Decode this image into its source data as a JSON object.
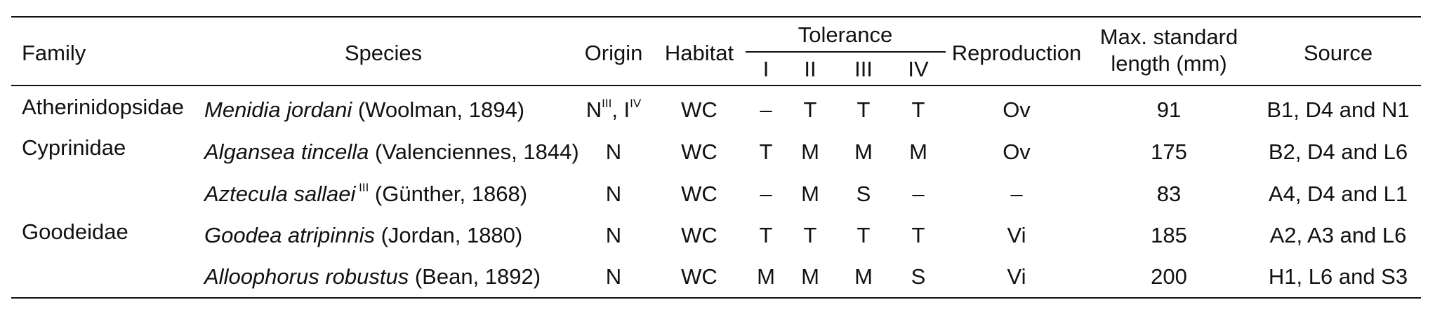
{
  "headers": {
    "family": "Family",
    "species": "Species",
    "origin": "Origin",
    "habitat": "Habitat",
    "tolerance": "Tolerance",
    "tolerance_sub": [
      "I",
      "II",
      "III",
      "IV"
    ],
    "reproduction": "Reproduction",
    "maxlen_line1": "Max. standard",
    "maxlen_line2": "length (mm)",
    "source": "Source"
  },
  "rows": [
    {
      "family": "Atherinidopsidae",
      "sci": "Menidia jordani",
      "sup": "",
      "authority": " (Woolman, 1894)",
      "origin_a": "N",
      "origin_a_sup": "III",
      "origin_sep": ", I",
      "origin_b_sup": "IV",
      "habitat": "WC",
      "tol": [
        "–",
        "T",
        "T",
        "T"
      ],
      "reproduction": "Ov",
      "maxlen": "91",
      "source": "B1, D4 and N1"
    },
    {
      "family": "Cyprinidae",
      "sci": "Algansea tincella",
      "sup": "",
      "authority": " (Valenciennes, 1844)",
      "origin": "N",
      "habitat": "WC",
      "tol": [
        "T",
        "M",
        "M",
        "M"
      ],
      "reproduction": "Ov",
      "maxlen": "175",
      "source": "B2, D4 and L6"
    },
    {
      "family": "",
      "sci": "Aztecula sallaei",
      "sup": " III",
      "authority": " (Günther, 1868)",
      "origin": "N",
      "habitat": "WC",
      "tol": [
        "–",
        "M",
        "S",
        "–"
      ],
      "reproduction": "–",
      "maxlen": "83",
      "source": "A4, D4 and L1"
    },
    {
      "family": "Goodeidae",
      "sci": "Goodea atripinnis",
      "sup": "",
      "authority": " (Jordan, 1880)",
      "origin": "N",
      "habitat": "WC",
      "tol": [
        "T",
        "T",
        "T",
        "T"
      ],
      "reproduction": "Vi",
      "maxlen": "185",
      "source": "A2, A3 and L6"
    },
    {
      "family": "",
      "sci": "Alloophorus robustus",
      "sup": "",
      "authority": " (Bean, 1892)",
      "origin": "N",
      "habitat": "WC",
      "tol": [
        "M",
        "M",
        "M",
        "S"
      ],
      "reproduction": "Vi",
      "maxlen": "200",
      "source": "H1, L6 and S3"
    }
  ]
}
